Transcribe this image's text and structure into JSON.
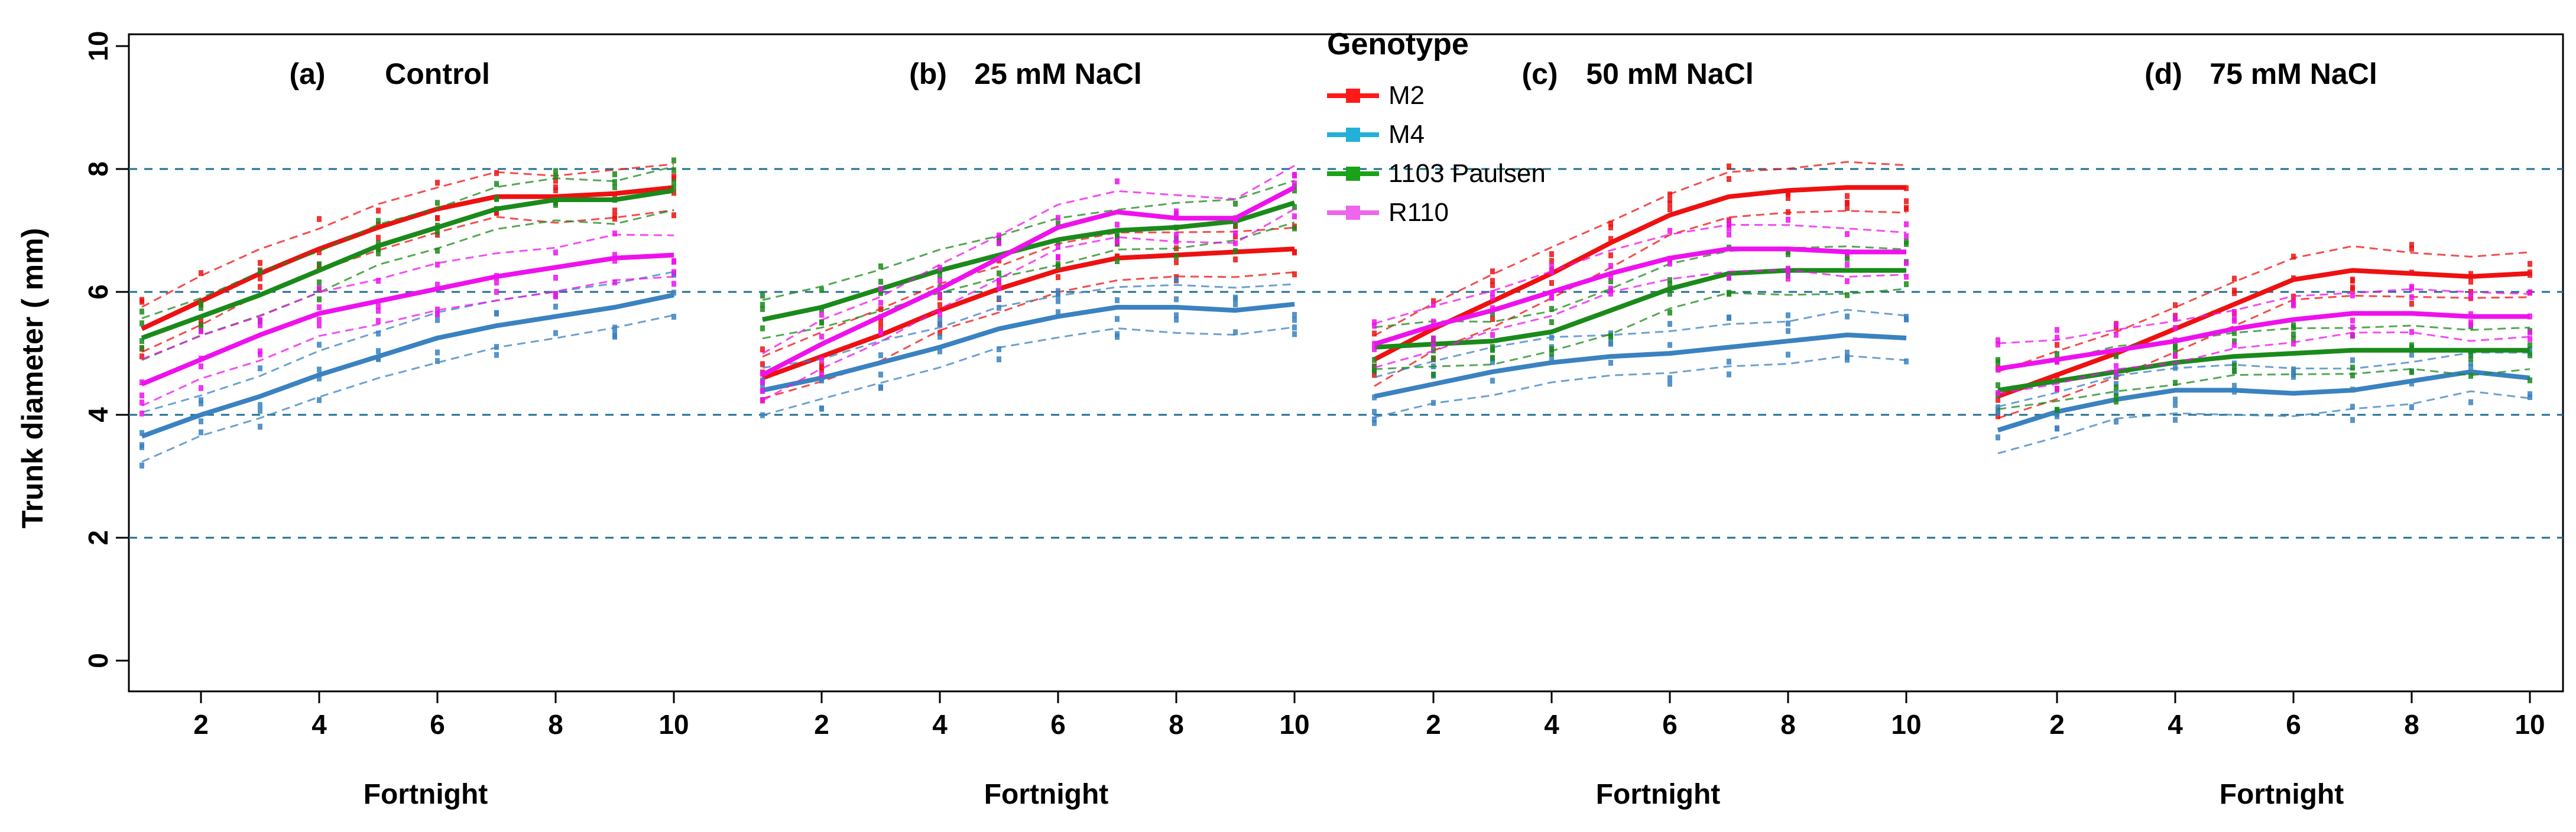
{
  "chart_data": {
    "type": "line",
    "ylabel": "Trunk diameter ( mm)",
    "ylim": [
      0,
      10
    ],
    "yticks": [
      0,
      2,
      4,
      6,
      8,
      10
    ],
    "reference_lines": [
      2,
      4,
      6,
      8
    ],
    "legend": {
      "title": "Genotype",
      "placement": "top-center",
      "entries": [
        {
          "name": "M2",
          "color": "#ff1a1a"
        },
        {
          "name": "M4",
          "color": "#22b0d8"
        },
        {
          "name": "1103 Paulsen",
          "color": "#1aa21a"
        },
        {
          "name": "R110",
          "color": "#ee66ee"
        }
      ]
    },
    "panels": [
      {
        "label": "(a)",
        "title": "Control",
        "xlabel": "Fortnight",
        "xticks": [
          2,
          4,
          6,
          8,
          10
        ],
        "x": [
          1,
          2,
          3,
          4,
          5,
          6,
          7,
          8,
          9,
          10
        ],
        "series": [
          {
            "name": "M2",
            "color": "#ee1111",
            "values": [
              5.4,
              5.85,
              6.3,
              6.7,
              7.05,
              7.35,
              7.55,
              7.55,
              7.6,
              7.7
            ]
          },
          {
            "name": "M4",
            "color": "#3a82c0",
            "values": [
              3.65,
              4.0,
              4.3,
              4.65,
              4.95,
              5.25,
              5.45,
              5.6,
              5.75,
              5.95
            ]
          },
          {
            "name": "1103 Paulsen",
            "color": "#1a8a1a",
            "values": [
              5.25,
              5.6,
              5.95,
              6.35,
              6.75,
              7.05,
              7.35,
              7.5,
              7.5,
              7.65
            ]
          },
          {
            "name": "R110",
            "color": "#ee11ee",
            "values": [
              4.5,
              4.9,
              5.3,
              5.65,
              5.85,
              6.05,
              6.25,
              6.4,
              6.55,
              6.6
            ]
          }
        ]
      },
      {
        "label": "(b)",
        "title": "25 mM NaCl",
        "xlabel": "Fortnight",
        "xticks": [
          2,
          4,
          6,
          8,
          10
        ],
        "x": [
          1,
          2,
          3,
          4,
          5,
          6,
          7,
          8,
          9,
          10
        ],
        "series": [
          {
            "name": "M2",
            "color": "#ee1111",
            "values": [
              4.6,
              4.95,
              5.3,
              5.7,
              6.05,
              6.35,
              6.55,
              6.6,
              6.65,
              6.7
            ]
          },
          {
            "name": "M4",
            "color": "#3a82c0",
            "values": [
              4.4,
              4.6,
              4.85,
              5.1,
              5.4,
              5.6,
              5.75,
              5.75,
              5.7,
              5.8
            ]
          },
          {
            "name": "1103 Paulsen",
            "color": "#1a8a1a",
            "values": [
              5.55,
              5.75,
              6.05,
              6.35,
              6.6,
              6.85,
              7.0,
              7.05,
              7.15,
              7.45
            ]
          },
          {
            "name": "R110",
            "color": "#ee11ee",
            "values": [
              4.65,
              5.15,
              5.6,
              6.05,
              6.55,
              7.05,
              7.3,
              7.2,
              7.2,
              7.7
            ]
          }
        ]
      },
      {
        "label": "(c)",
        "title": "50 mM NaCl",
        "xlabel": "Fortnight",
        "xticks": [
          2,
          4,
          6,
          8,
          10
        ],
        "x": [
          1,
          2,
          3,
          4,
          5,
          6,
          7,
          8,
          9,
          10
        ],
        "series": [
          {
            "name": "M2",
            "color": "#ee1111",
            "values": [
              4.9,
              5.4,
              5.85,
              6.3,
              6.8,
              7.25,
              7.55,
              7.65,
              7.7,
              7.7
            ]
          },
          {
            "name": "M4",
            "color": "#3a82c0",
            "values": [
              4.3,
              4.5,
              4.7,
              4.85,
              4.95,
              5.0,
              5.1,
              5.2,
              5.3,
              5.25
            ]
          },
          {
            "name": "1103 Paulsen",
            "color": "#1a8a1a",
            "values": [
              5.1,
              5.15,
              5.2,
              5.35,
              5.7,
              6.05,
              6.3,
              6.35,
              6.35,
              6.35
            ]
          },
          {
            "name": "R110",
            "color": "#ee11ee",
            "values": [
              5.15,
              5.45,
              5.7,
              6.0,
              6.3,
              6.55,
              6.7,
              6.7,
              6.65,
              6.65
            ]
          }
        ]
      },
      {
        "label": "(d)",
        "title": "75 mM NaCl",
        "xlabel": "Fortnight",
        "xticks": [
          2,
          4,
          6,
          8,
          10
        ],
        "x": [
          1,
          2,
          3,
          4,
          5,
          6,
          7,
          8,
          9,
          10
        ],
        "series": [
          {
            "name": "M2",
            "color": "#ee1111",
            "values": [
              4.3,
              4.65,
              5.0,
              5.4,
              5.8,
              6.2,
              6.35,
              6.3,
              6.25,
              6.3
            ]
          },
          {
            "name": "M4",
            "color": "#3a82c0",
            "values": [
              3.75,
              4.05,
              4.25,
              4.4,
              4.4,
              4.35,
              4.4,
              4.55,
              4.7,
              4.6
            ]
          },
          {
            "name": "1103 Paulsen",
            "color": "#1a8a1a",
            "values": [
              4.4,
              4.55,
              4.7,
              4.85,
              4.95,
              5.0,
              5.05,
              5.05,
              5.05,
              5.05
            ]
          },
          {
            "name": "R110",
            "color": "#ee11ee",
            "values": [
              4.75,
              4.9,
              5.05,
              5.2,
              5.4,
              5.55,
              5.65,
              5.65,
              5.6,
              5.6
            ]
          }
        ]
      }
    ]
  }
}
